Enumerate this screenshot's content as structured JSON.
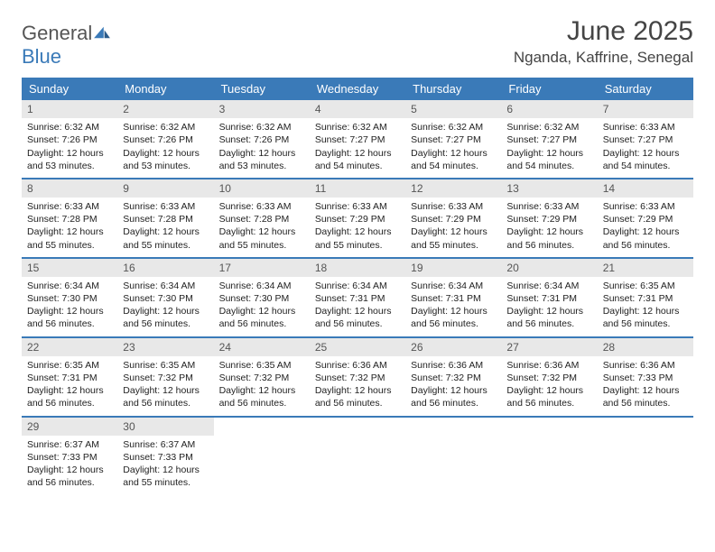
{
  "logo": {
    "t1": "General",
    "t2": "Blue"
  },
  "title": "June 2025",
  "location": "Nganda, Kaffrine, Senegal",
  "colors": {
    "header_bg": "#3a7ab8",
    "header_fg": "#ffffff",
    "daynum_bg": "#e8e8e8",
    "rule": "#3a7ab8",
    "text": "#333333"
  },
  "weekday_labels": [
    "Sunday",
    "Monday",
    "Tuesday",
    "Wednesday",
    "Thursday",
    "Friday",
    "Saturday"
  ],
  "weeks": [
    [
      {
        "n": "1",
        "sr": "6:32 AM",
        "ss": "7:26 PM",
        "dl": "12 hours and 53 minutes."
      },
      {
        "n": "2",
        "sr": "6:32 AM",
        "ss": "7:26 PM",
        "dl": "12 hours and 53 minutes."
      },
      {
        "n": "3",
        "sr": "6:32 AM",
        "ss": "7:26 PM",
        "dl": "12 hours and 53 minutes."
      },
      {
        "n": "4",
        "sr": "6:32 AM",
        "ss": "7:27 PM",
        "dl": "12 hours and 54 minutes."
      },
      {
        "n": "5",
        "sr": "6:32 AM",
        "ss": "7:27 PM",
        "dl": "12 hours and 54 minutes."
      },
      {
        "n": "6",
        "sr": "6:32 AM",
        "ss": "7:27 PM",
        "dl": "12 hours and 54 minutes."
      },
      {
        "n": "7",
        "sr": "6:33 AM",
        "ss": "7:27 PM",
        "dl": "12 hours and 54 minutes."
      }
    ],
    [
      {
        "n": "8",
        "sr": "6:33 AM",
        "ss": "7:28 PM",
        "dl": "12 hours and 55 minutes."
      },
      {
        "n": "9",
        "sr": "6:33 AM",
        "ss": "7:28 PM",
        "dl": "12 hours and 55 minutes."
      },
      {
        "n": "10",
        "sr": "6:33 AM",
        "ss": "7:28 PM",
        "dl": "12 hours and 55 minutes."
      },
      {
        "n": "11",
        "sr": "6:33 AM",
        "ss": "7:29 PM",
        "dl": "12 hours and 55 minutes."
      },
      {
        "n": "12",
        "sr": "6:33 AM",
        "ss": "7:29 PM",
        "dl": "12 hours and 55 minutes."
      },
      {
        "n": "13",
        "sr": "6:33 AM",
        "ss": "7:29 PM",
        "dl": "12 hours and 56 minutes."
      },
      {
        "n": "14",
        "sr": "6:33 AM",
        "ss": "7:29 PM",
        "dl": "12 hours and 56 minutes."
      }
    ],
    [
      {
        "n": "15",
        "sr": "6:34 AM",
        "ss": "7:30 PM",
        "dl": "12 hours and 56 minutes."
      },
      {
        "n": "16",
        "sr": "6:34 AM",
        "ss": "7:30 PM",
        "dl": "12 hours and 56 minutes."
      },
      {
        "n": "17",
        "sr": "6:34 AM",
        "ss": "7:30 PM",
        "dl": "12 hours and 56 minutes."
      },
      {
        "n": "18",
        "sr": "6:34 AM",
        "ss": "7:31 PM",
        "dl": "12 hours and 56 minutes."
      },
      {
        "n": "19",
        "sr": "6:34 AM",
        "ss": "7:31 PM",
        "dl": "12 hours and 56 minutes."
      },
      {
        "n": "20",
        "sr": "6:34 AM",
        "ss": "7:31 PM",
        "dl": "12 hours and 56 minutes."
      },
      {
        "n": "21",
        "sr": "6:35 AM",
        "ss": "7:31 PM",
        "dl": "12 hours and 56 minutes."
      }
    ],
    [
      {
        "n": "22",
        "sr": "6:35 AM",
        "ss": "7:31 PM",
        "dl": "12 hours and 56 minutes."
      },
      {
        "n": "23",
        "sr": "6:35 AM",
        "ss": "7:32 PM",
        "dl": "12 hours and 56 minutes."
      },
      {
        "n": "24",
        "sr": "6:35 AM",
        "ss": "7:32 PM",
        "dl": "12 hours and 56 minutes."
      },
      {
        "n": "25",
        "sr": "6:36 AM",
        "ss": "7:32 PM",
        "dl": "12 hours and 56 minutes."
      },
      {
        "n": "26",
        "sr": "6:36 AM",
        "ss": "7:32 PM",
        "dl": "12 hours and 56 minutes."
      },
      {
        "n": "27",
        "sr": "6:36 AM",
        "ss": "7:32 PM",
        "dl": "12 hours and 56 minutes."
      },
      {
        "n": "28",
        "sr": "6:36 AM",
        "ss": "7:33 PM",
        "dl": "12 hours and 56 minutes."
      }
    ],
    [
      {
        "n": "29",
        "sr": "6:37 AM",
        "ss": "7:33 PM",
        "dl": "12 hours and 56 minutes."
      },
      {
        "n": "30",
        "sr": "6:37 AM",
        "ss": "7:33 PM",
        "dl": "12 hours and 55 minutes."
      },
      null,
      null,
      null,
      null,
      null
    ]
  ],
  "labels": {
    "sunrise": "Sunrise:",
    "sunset": "Sunset:",
    "daylight": "Daylight:"
  }
}
